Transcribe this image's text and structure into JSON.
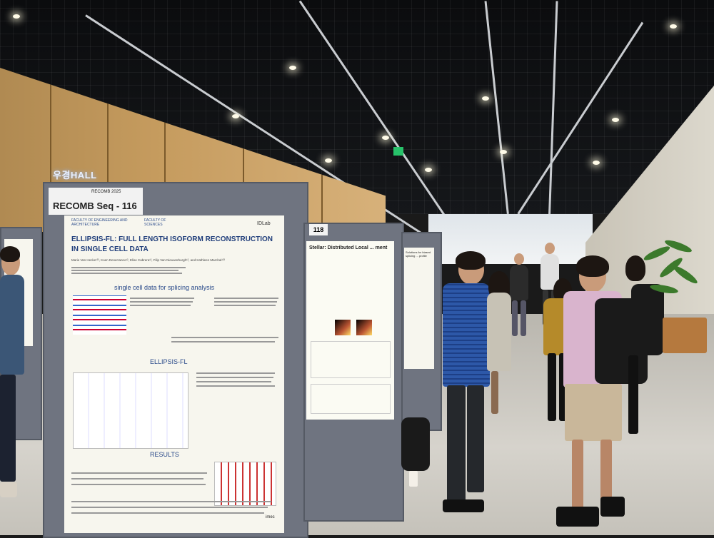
{
  "scene": {
    "hall_sign": "우경HALL",
    "board_number_main": "RECOMB Seq - 116",
    "board_number_right": "118"
  },
  "poster_main": {
    "header_label": "RECOMB 2025",
    "logo_left": "FACULTY OF ENGINEERING AND ARCHITECTURE",
    "logo_mid": "FACULTY OF SCIENCES",
    "logo_right": "IDLab",
    "title_line1": "ELLIPSIS-FL: FULL LENGTH ISOFORM RECONSTRUCTION",
    "title_line2": "IN SINGLE CELL DATA",
    "authors": "Marie Van Hecke¹²³, Koen Deserranno¹², Elise Cabrera¹², Filip Van Nieuwerburgh¹², and Kathleen Marchal¹²³",
    "section1": "single cell data for splicing analysis",
    "section2": "ELLIPSIS-FL",
    "section3": "RESULTS",
    "footer_mark": "imec"
  },
  "poster_second": {
    "title": "Stellar: Distributed Local ... ment"
  },
  "poster_third": {
    "title": "Solutions for biased splicing ... profile"
  }
}
